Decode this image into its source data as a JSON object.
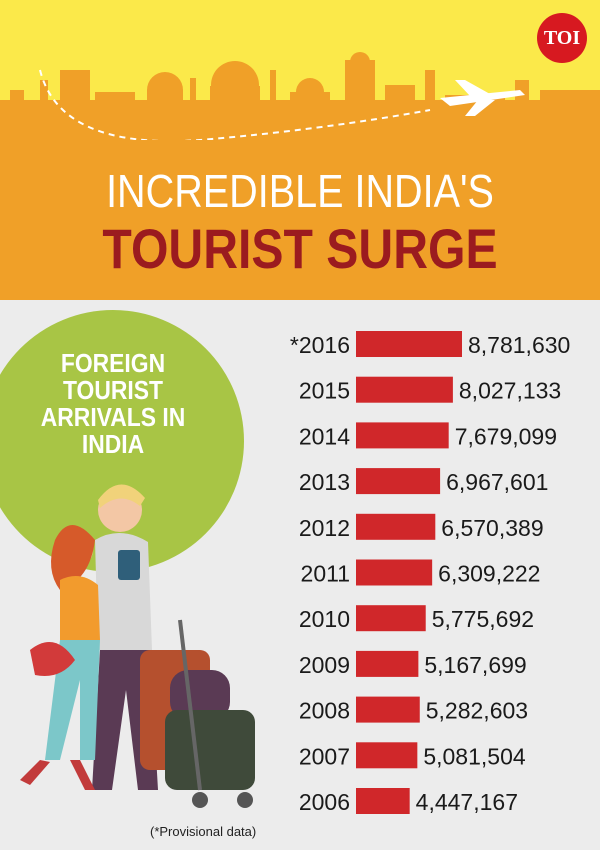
{
  "logo": "TOI",
  "title_line1": "INCREDIBLE INDIA'S",
  "title_line2": "TOURIST SURGE",
  "subtitle": "FOREIGN TOURIST ARRIVALS IN INDIA",
  "footnote": "(*Provisional data)",
  "colors": {
    "bar": "#d0272a",
    "header_yellow": "#fbe94a",
    "header_orange": "#f0a028",
    "title_red": "#9b1b1f",
    "circle_green": "#a8c545"
  },
  "chart_data": {
    "type": "bar",
    "orientation": "horizontal",
    "categories": [
      "*2016",
      "2015",
      "2014",
      "2013",
      "2012",
      "2011",
      "2010",
      "2009",
      "2008",
      "2007",
      "2006"
    ],
    "values": [
      8781630,
      8027133,
      7679099,
      6967601,
      6570389,
      6309222,
      5775692,
      5167699,
      5282603,
      5081504,
      4447167
    ],
    "value_labels": [
      "8,781,630",
      "8,027,133",
      "7,679,099",
      "6,967,601",
      "6,570,389",
      "6,309,222",
      "5,775,692",
      "5,167,699",
      "5,282,603",
      "5,081,504",
      "4,447,167"
    ],
    "title": "FOREIGN TOURIST ARRIVALS IN INDIA",
    "xlabel": "",
    "ylabel": ""
  }
}
